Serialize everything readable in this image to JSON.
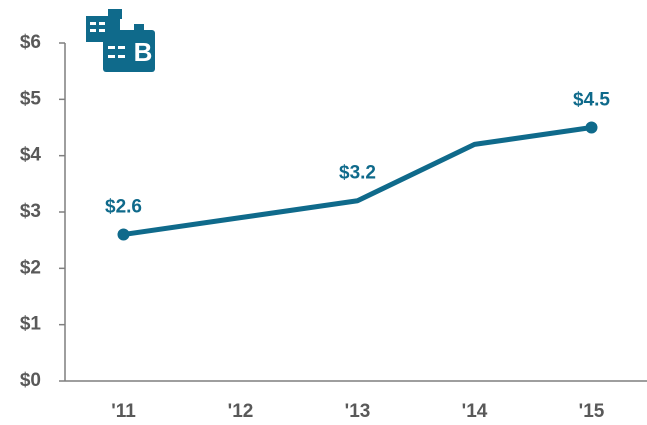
{
  "chart_data": {
    "type": "line",
    "icon_text": "B",
    "categories": [
      "'11",
      "'12",
      "'13",
      "'14",
      "'15"
    ],
    "series": [
      {
        "color": "#0f6a8b",
        "values": [
          2.6,
          2.9,
          3.2,
          4.2,
          4.5
        ],
        "value_labels": [
          "$2.6",
          null,
          "$3.2",
          null,
          "$4.5"
        ]
      }
    ],
    "ylim": [
      0,
      6
    ],
    "yticks": [
      {
        "value": 0,
        "label": "$0"
      },
      {
        "value": 1,
        "label": "$1"
      },
      {
        "value": 2,
        "label": "$2"
      },
      {
        "value": 3,
        "label": "$3"
      },
      {
        "value": 4,
        "label": "$4"
      },
      {
        "value": 5,
        "label": "$5"
      },
      {
        "value": 6,
        "label": "$6"
      }
    ]
  }
}
